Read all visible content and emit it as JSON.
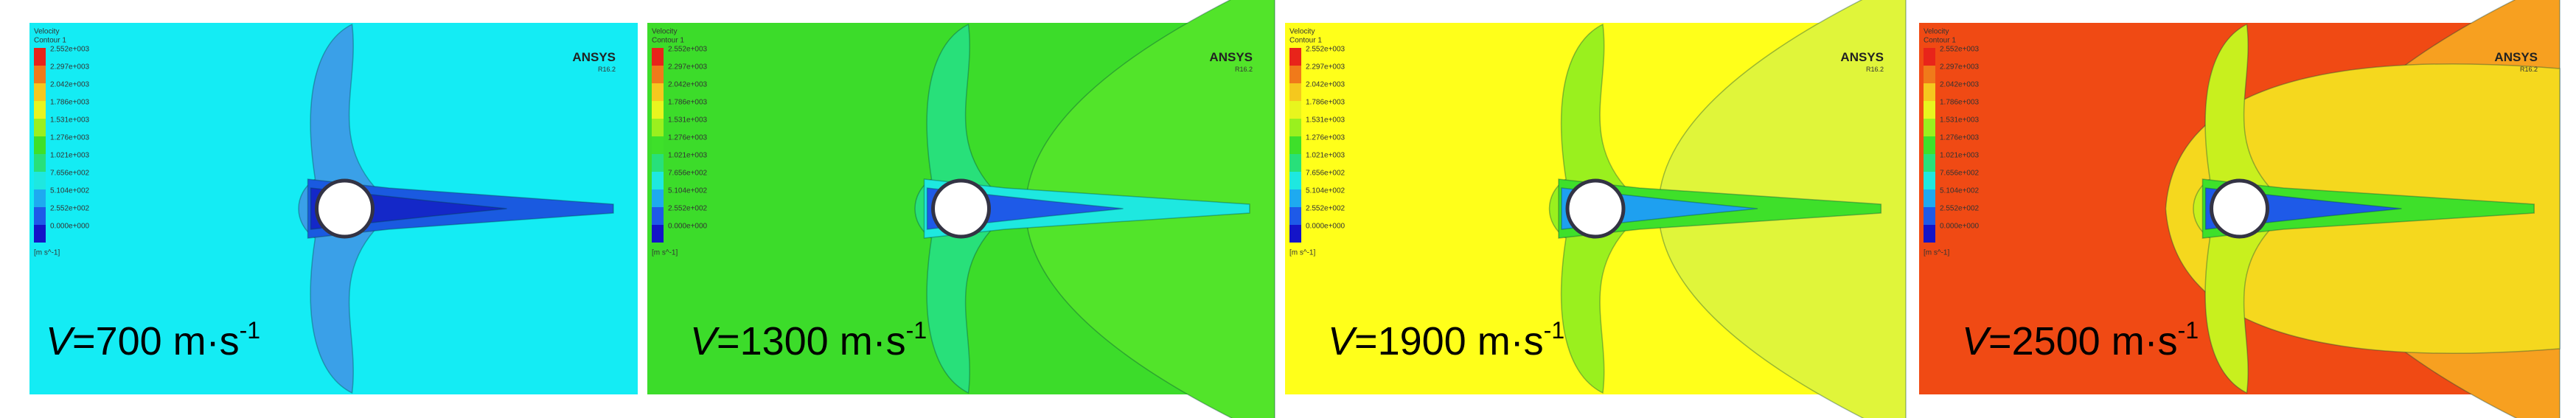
{
  "figure": {
    "panels": [
      {
        "label": {
          "italic": "V",
          "text": "=700 m·s",
          "superscript": "-1"
        }
      },
      {
        "label": {
          "italic": "V",
          "text": "=1300 m·s",
          "superscript": "-1"
        }
      },
      {
        "label": {
          "italic": "V",
          "text": "=1900 m·s",
          "superscript": "-1"
        }
      },
      {
        "label": {
          "italic": "V",
          "text": "=2500 m·s",
          "superscript": "-1"
        }
      }
    ],
    "legend": {
      "title": "Velocity",
      "subtitle": "Contour 1",
      "values": [
        "2.552e+003",
        "2.297e+003",
        "2.042e+003",
        "1.786e+003",
        "1.531e+003",
        "1.276e+003",
        "1.021e+003",
        "7.656e+002",
        "5.104e+002",
        "2.552e+002",
        "0.000e+000"
      ],
      "unit": "[m s^-1]"
    },
    "logo": {
      "name": "ANSYS",
      "version": "R16.2"
    }
  }
}
